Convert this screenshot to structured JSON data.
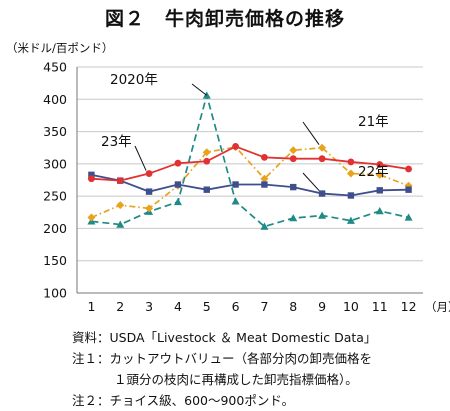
{
  "title": "図２　牛肉卸売価格の推移",
  "unit_label": "（米ドル/百ポンド）",
  "notes": {
    "source": "資料：USDA「Livestock ＆ Meat Domestic Data」",
    "note1_line1": "注１：カットアウトバリュー（各部分肉の卸売価格を",
    "note1_line2": "１頭分の枝肉に再構成した卸売指標価格）。",
    "note2": "注２：チョイス級、600～900ポンド。"
  },
  "chart_data": {
    "type": "line",
    "x": [
      1,
      2,
      3,
      4,
      5,
      6,
      7,
      8,
      9,
      10,
      11,
      12
    ],
    "x_tick_labels": [
      "1",
      "2",
      "3",
      "4",
      "5",
      "6",
      "7",
      "8",
      "9",
      "10",
      "11",
      "12"
    ],
    "x_unit": "（月）",
    "ylim": [
      100,
      450
    ],
    "y_ticks": [
      100,
      150,
      200,
      250,
      300,
      350,
      400,
      450
    ],
    "grid": true,
    "series": [
      {
        "name": "2020年",
        "color": "#1f8a86",
        "style": "dashed",
        "marker": "triangle",
        "values": [
          211,
          206,
          226,
          241,
          406,
          242,
          203,
          216,
          220,
          212,
          227,
          217
        ]
      },
      {
        "name": "21年",
        "color": "#e8a31e",
        "style": "dashdot",
        "marker": "diamond",
        "values": [
          217,
          236,
          231,
          266,
          318,
          326,
          277,
          321,
          325,
          285,
          283,
          266
        ]
      },
      {
        "name": "22年",
        "color": "#3f4e8c",
        "style": "solid",
        "marker": "square",
        "values": [
          283,
          274,
          257,
          268,
          260,
          268,
          268,
          264,
          254,
          251,
          259,
          260
        ]
      },
      {
        "name": "23年",
        "color": "#e03232",
        "style": "solid",
        "marker": "circle",
        "values": [
          277,
          274,
          285,
          301,
          304,
          327,
          310,
          308,
          308,
          303,
          299,
          292
        ]
      }
    ]
  }
}
